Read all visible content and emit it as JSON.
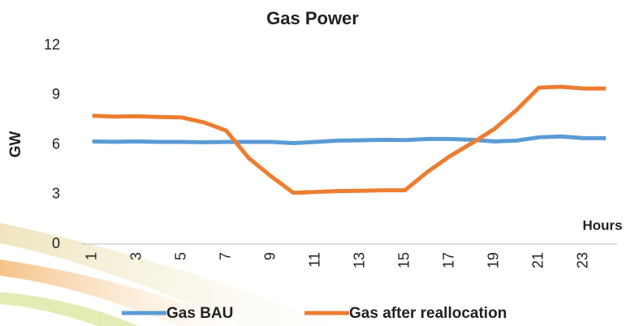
{
  "chart_data": {
    "type": "line",
    "title": "Gas Power",
    "y_label": "GW",
    "x_label": "Hours",
    "categories": [
      1,
      null,
      3,
      null,
      5,
      null,
      7,
      null,
      9,
      null,
      11,
      null,
      13,
      null,
      15,
      null,
      17,
      null,
      19,
      null,
      21,
      null,
      23,
      null
    ],
    "series": [
      {
        "name": "Gas BAU",
        "color": "#5b9bd5",
        "values": [
          6.2,
          6.18,
          6.2,
          6.17,
          6.17,
          6.15,
          6.17,
          6.17,
          6.17,
          6.1,
          6.17,
          6.25,
          6.27,
          6.3,
          6.28,
          6.35,
          6.35,
          6.3,
          6.2,
          6.25,
          6.45,
          6.5,
          6.4,
          6.4
        ]
      },
      {
        "name": "Gas after reallocation",
        "color": "#ed7d31",
        "values": [
          7.75,
          7.7,
          7.72,
          7.68,
          7.65,
          7.35,
          6.85,
          5.2,
          4.1,
          3.1,
          3.15,
          3.2,
          3.22,
          3.25,
          3.25,
          4.35,
          5.3,
          6.1,
          6.95,
          8.1,
          9.45,
          9.5,
          9.4,
          9.4
        ]
      }
    ],
    "ylim": [
      0,
      12
    ],
    "yticks": [
      0,
      3,
      6,
      9,
      12
    ],
    "grid": false
  }
}
